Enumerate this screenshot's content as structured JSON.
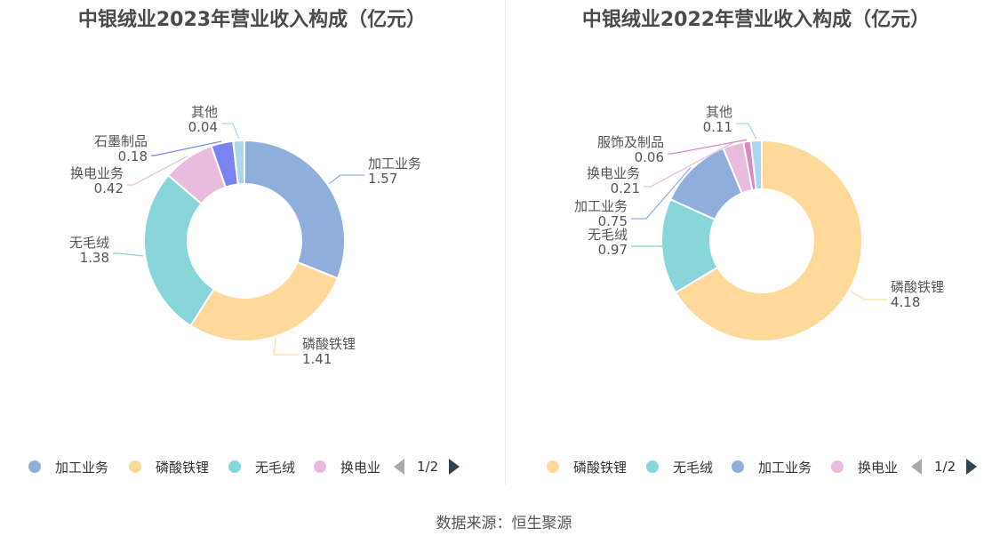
{
  "source": "数据来源：恒生聚源",
  "panels": [
    {
      "title": "中银绒业2023年营业收入构成（亿元）",
      "legend": [
        "加工业务",
        "磷酸铁锂",
        "无毛绒",
        "换电业"
      ],
      "pager": "1/2"
    },
    {
      "title": "中银绒业2022年营业收入构成（亿元）",
      "legend": [
        "磷酸铁锂",
        "无毛绒",
        "加工业务",
        "换电业"
      ],
      "pager": "1/2"
    }
  ],
  "chart_data": [
    {
      "type": "pie",
      "title": "中银绒业2023年营业收入构成（亿元）",
      "donut": true,
      "slices": [
        {
          "name": "加工业务",
          "value": 1.57,
          "label": "1.57",
          "color": "#8FAEDC"
        },
        {
          "name": "磷酸铁锂",
          "value": 1.41,
          "label": "1.41",
          "color": "#FFD99A"
        },
        {
          "name": "无毛绒",
          "value": 1.38,
          "label": "1.38",
          "color": "#88D6D9"
        },
        {
          "name": "换电业务",
          "value": 0.42,
          "label": "0.42",
          "color": "#E8BCDD"
        },
        {
          "name": "石墨制品",
          "value": 0.18,
          "label": "0.18",
          "color": "#7B83F0"
        },
        {
          "name": "其他",
          "value": 0.04,
          "label": "0.04",
          "color": "#A8D8F0"
        }
      ],
      "legend_position": "bottom"
    },
    {
      "type": "pie",
      "title": "中银绒业2022年营业收入构成（亿元）",
      "donut": true,
      "slices": [
        {
          "name": "磷酸铁锂",
          "value": 4.18,
          "label": "4.18",
          "color": "#FFD99A"
        },
        {
          "name": "无毛绒",
          "value": 0.97,
          "label": "0.97",
          "color": "#88D6D9"
        },
        {
          "name": "加工业务",
          "value": 0.75,
          "label": "0.75",
          "color": "#8FAEDC"
        },
        {
          "name": "换电业务",
          "value": 0.21,
          "label": "0.21",
          "color": "#E8BCDD"
        },
        {
          "name": "服饰及制品",
          "value": 0.06,
          "label": "0.06",
          "color": "#D886C4"
        },
        {
          "name": "其他",
          "value": 0.11,
          "label": "0.11",
          "color": "#A8D8F0"
        }
      ],
      "legend_position": "bottom"
    }
  ]
}
